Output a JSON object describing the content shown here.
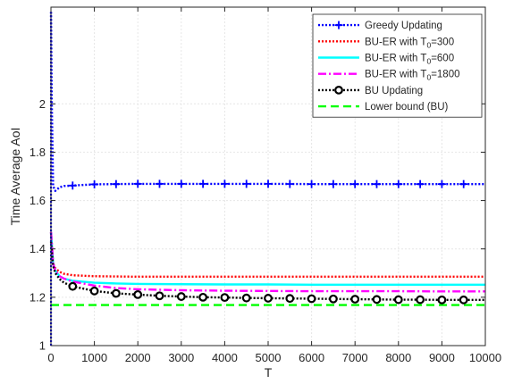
{
  "chart_data": {
    "type": "line",
    "xlabel": "T",
    "ylabel": "Time Average AoI",
    "xlim": [
      0,
      10000
    ],
    "ylim": [
      1,
      2.4
    ],
    "xticks": [
      0,
      1000,
      2000,
      3000,
      4000,
      5000,
      6000,
      7000,
      8000,
      9000,
      10000
    ],
    "yticks": [
      1,
      1.2,
      1.4,
      1.6,
      1.8,
      2
    ],
    "ytick_labels": [
      "1",
      "1.2",
      "1.4",
      "1.6",
      "1.8",
      "2"
    ],
    "grid": true,
    "legend_position": "top-right",
    "series": [
      {
        "name": "Greedy Updating",
        "color": "#0000ff",
        "dash": "dotted",
        "marker": "plus",
        "x": [
          1,
          20,
          50,
          100,
          200,
          300,
          500,
          1000,
          1500,
          2000,
          3000,
          4000,
          5000,
          6000,
          7000,
          8000,
          9000,
          10000
        ],
        "y": [
          2.38,
          2.0,
          1.66,
          1.64,
          1.655,
          1.66,
          1.662,
          1.667,
          1.668,
          1.669,
          1.669,
          1.669,
          1.669,
          1.668,
          1.668,
          1.668,
          1.668,
          1.668
        ],
        "marker_x": [
          500,
          1000,
          1500,
          2000,
          2500,
          3000,
          3500,
          4000,
          4500,
          5000,
          5500,
          6000,
          6500,
          7000,
          7500,
          8000,
          8500,
          9000,
          9500
        ]
      },
      {
        "name": "BU-ER with T_0=300",
        "name_parts": [
          "BU-ER with T",
          "0",
          "=300"
        ],
        "color": "#ff0000",
        "dash": "dotted",
        "x": [
          1,
          50,
          100,
          200,
          300,
          500,
          1000,
          1500,
          2000,
          3000,
          4000,
          5000,
          6000,
          7000,
          8000,
          9000,
          10000
        ],
        "y": [
          1.47,
          1.34,
          1.32,
          1.305,
          1.297,
          1.291,
          1.287,
          1.286,
          1.285,
          1.285,
          1.285,
          1.285,
          1.285,
          1.285,
          1.285,
          1.285,
          1.285
        ]
      },
      {
        "name": "BU-ER with T_0=600",
        "name_parts": [
          "BU-ER with T",
          "0",
          "=600"
        ],
        "color": "#00ffff",
        "dash": "solid",
        "x": [
          1,
          50,
          100,
          200,
          300,
          500,
          1000,
          1500,
          2000,
          3000,
          4000,
          5000,
          6000,
          7000,
          8000,
          9000,
          10000
        ],
        "y": [
          1.47,
          1.34,
          1.31,
          1.287,
          1.277,
          1.268,
          1.26,
          1.257,
          1.255,
          1.254,
          1.253,
          1.253,
          1.252,
          1.252,
          1.252,
          1.252,
          1.252
        ]
      },
      {
        "name": "BU-ER with T_0=1800",
        "name_parts": [
          "BU-ER with T",
          "0",
          "=1800"
        ],
        "color": "#ff00ff",
        "dash": "dashdot",
        "x": [
          1,
          50,
          100,
          200,
          300,
          500,
          1000,
          1500,
          2000,
          3000,
          4000,
          5000,
          6000,
          7000,
          8000,
          9000,
          10000
        ],
        "y": [
          1.47,
          1.34,
          1.31,
          1.287,
          1.277,
          1.265,
          1.248,
          1.238,
          1.233,
          1.229,
          1.227,
          1.226,
          1.225,
          1.225,
          1.225,
          1.224,
          1.224
        ]
      },
      {
        "name": "BU Updating",
        "color": "#000000",
        "dash": "dotted",
        "marker": "circle",
        "x": [
          1,
          50,
          100,
          200,
          300,
          500,
          1000,
          1500,
          2000,
          2500,
          3000,
          3500,
          4000,
          4500,
          5000,
          5500,
          6000,
          6500,
          7000,
          7500,
          8000,
          8500,
          9000,
          9500,
          10000
        ],
        "y": [
          1.43,
          1.33,
          1.3,
          1.275,
          1.26,
          1.245,
          1.226,
          1.216,
          1.211,
          1.206,
          1.203,
          1.2,
          1.199,
          1.197,
          1.196,
          1.195,
          1.194,
          1.193,
          1.192,
          1.191,
          1.19,
          1.19,
          1.189,
          1.189,
          1.189
        ],
        "marker_x": [
          500,
          1000,
          1500,
          2000,
          2500,
          3000,
          3500,
          4000,
          4500,
          5000,
          5500,
          6000,
          6500,
          7000,
          7500,
          8000,
          8500,
          9000,
          9500
        ]
      },
      {
        "name": "Lower bound (BU)",
        "color": "#00ff00",
        "dash": "dashed",
        "x": [
          0,
          10000
        ],
        "y": [
          1.168,
          1.168
        ]
      }
    ]
  }
}
